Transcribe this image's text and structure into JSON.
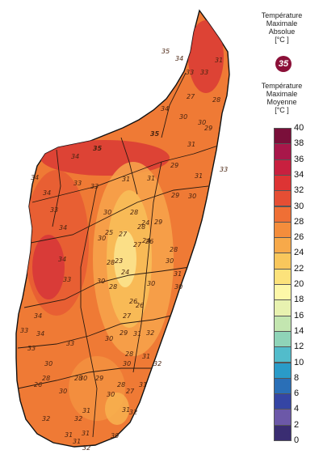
{
  "map": {
    "labels": [
      {
        "text": "35",
        "type": "station"
      },
      {
        "text": "34",
        "type": "station"
      },
      {
        "text": "35",
        "type": "absolute-max-highlight"
      },
      {
        "text": "34",
        "type": "station"
      },
      {
        "text": "35",
        "type": "absolute-max-highlight"
      },
      {
        "text": "33",
        "type": "station"
      },
      {
        "text": "31",
        "type": "station"
      },
      {
        "text": "33",
        "type": "station"
      },
      {
        "text": "34",
        "type": "station"
      },
      {
        "text": "33",
        "type": "station"
      },
      {
        "text": "30",
        "type": "station"
      },
      {
        "text": "27",
        "type": "station"
      },
      {
        "text": "29",
        "type": "station"
      },
      {
        "text": "28",
        "type": "station"
      },
      {
        "text": "31",
        "type": "station"
      },
      {
        "text": "30",
        "type": "station"
      },
      {
        "text": "34",
        "type": "station"
      },
      {
        "text": "31",
        "type": "station"
      },
      {
        "text": "29",
        "type": "station"
      },
      {
        "text": "34",
        "type": "station"
      },
      {
        "text": "33",
        "type": "station"
      },
      {
        "text": "34",
        "type": "station"
      },
      {
        "text": "33",
        "type": "station"
      },
      {
        "text": "31",
        "type": "station"
      },
      {
        "text": "30",
        "type": "station"
      },
      {
        "text": "33",
        "type": "station"
      },
      {
        "text": "29",
        "type": "station"
      },
      {
        "text": "28",
        "type": "station"
      },
      {
        "text": "30",
        "type": "station"
      },
      {
        "text": "30",
        "type": "station"
      },
      {
        "text": "33",
        "type": "station"
      },
      {
        "text": "34",
        "type": "station"
      },
      {
        "text": "28",
        "type": "station"
      },
      {
        "text": "31",
        "type": "station"
      },
      {
        "text": "29",
        "type": "station"
      },
      {
        "text": "30",
        "type": "station"
      },
      {
        "text": "27",
        "type": "station"
      },
      {
        "text": "28",
        "type": "station"
      },
      {
        "text": "27",
        "type": "station"
      },
      {
        "text": "26",
        "type": "station"
      },
      {
        "text": "24",
        "type": "station"
      },
      {
        "text": "25",
        "type": "station"
      },
      {
        "text": "23",
        "type": "station"
      },
      {
        "text": "24",
        "type": "station"
      },
      {
        "text": "30",
        "type": "station"
      },
      {
        "text": "31",
        "type": "station"
      },
      {
        "text": "34",
        "type": "station"
      },
      {
        "text": "33",
        "type": "station"
      },
      {
        "text": "27",
        "type": "station"
      },
      {
        "text": "26",
        "type": "station"
      },
      {
        "text": "28",
        "type": "station"
      },
      {
        "text": "30",
        "type": "station"
      },
      {
        "text": "30",
        "type": "station"
      },
      {
        "text": "28",
        "type": "station"
      },
      {
        "text": "24",
        "type": "station"
      },
      {
        "text": "26",
        "type": "station"
      },
      {
        "text": "31",
        "type": "station"
      },
      {
        "text": "33",
        "type": "station"
      },
      {
        "text": "34",
        "type": "station"
      },
      {
        "text": "30",
        "type": "station"
      },
      {
        "text": "28",
        "type": "station"
      },
      {
        "text": "26",
        "type": "station"
      },
      {
        "text": "33",
        "type": "station"
      },
      {
        "text": "30",
        "type": "station"
      },
      {
        "text": "29",
        "type": "station"
      },
      {
        "text": "28",
        "type": "station"
      },
      {
        "text": "32",
        "type": "station"
      },
      {
        "text": "31",
        "type": "station"
      },
      {
        "text": "32",
        "type": "station"
      },
      {
        "text": "30",
        "type": "station"
      },
      {
        "text": "28",
        "type": "station"
      },
      {
        "text": "31",
        "type": "station"
      },
      {
        "text": "29",
        "type": "station"
      },
      {
        "text": "30",
        "type": "station"
      },
      {
        "text": "28",
        "type": "station"
      },
      {
        "text": "31",
        "type": "station"
      },
      {
        "text": "32",
        "type": "station"
      },
      {
        "text": "31",
        "type": "station"
      },
      {
        "text": "27",
        "type": "station"
      },
      {
        "text": "32",
        "type": "station"
      },
      {
        "text": "30",
        "type": "station"
      },
      {
        "text": "31",
        "type": "station"
      },
      {
        "text": "32",
        "type": "station"
      },
      {
        "text": "31",
        "type": "station"
      },
      {
        "text": "31",
        "type": "station"
      },
      {
        "text": "30",
        "type": "station"
      },
      {
        "text": "32",
        "type": "station"
      },
      {
        "text": "30",
        "type": "station"
      }
    ]
  },
  "legend": {
    "absolute_title": "Température\nMaximale\nAbsolue\n[°C ]",
    "absolute_badge": "35",
    "mean_title": "Température\nMaximale\nMoyenne\n[°C ]",
    "ticks": [
      "40",
      "38",
      "36",
      "34",
      "32",
      "30",
      "28",
      "26",
      "24",
      "22",
      "20",
      "18",
      "16",
      "14",
      "12",
      "10",
      "8",
      "6",
      "4",
      "2",
      "0"
    ],
    "colors": [
      "#7a0f3a",
      "#a8174a",
      "#c8203f",
      "#dd3434",
      "#e54e34",
      "#ef6f35",
      "#f48d3c",
      "#f7a94a",
      "#f9c75c",
      "#fce27b",
      "#fdf7a8",
      "#e8f2b0",
      "#c3e6b0",
      "#8fd4b8",
      "#52bccb",
      "#2a9bc8",
      "#2a6fb7",
      "#3545a4",
      "#6c58a8",
      "#3a2d72"
    ]
  }
}
